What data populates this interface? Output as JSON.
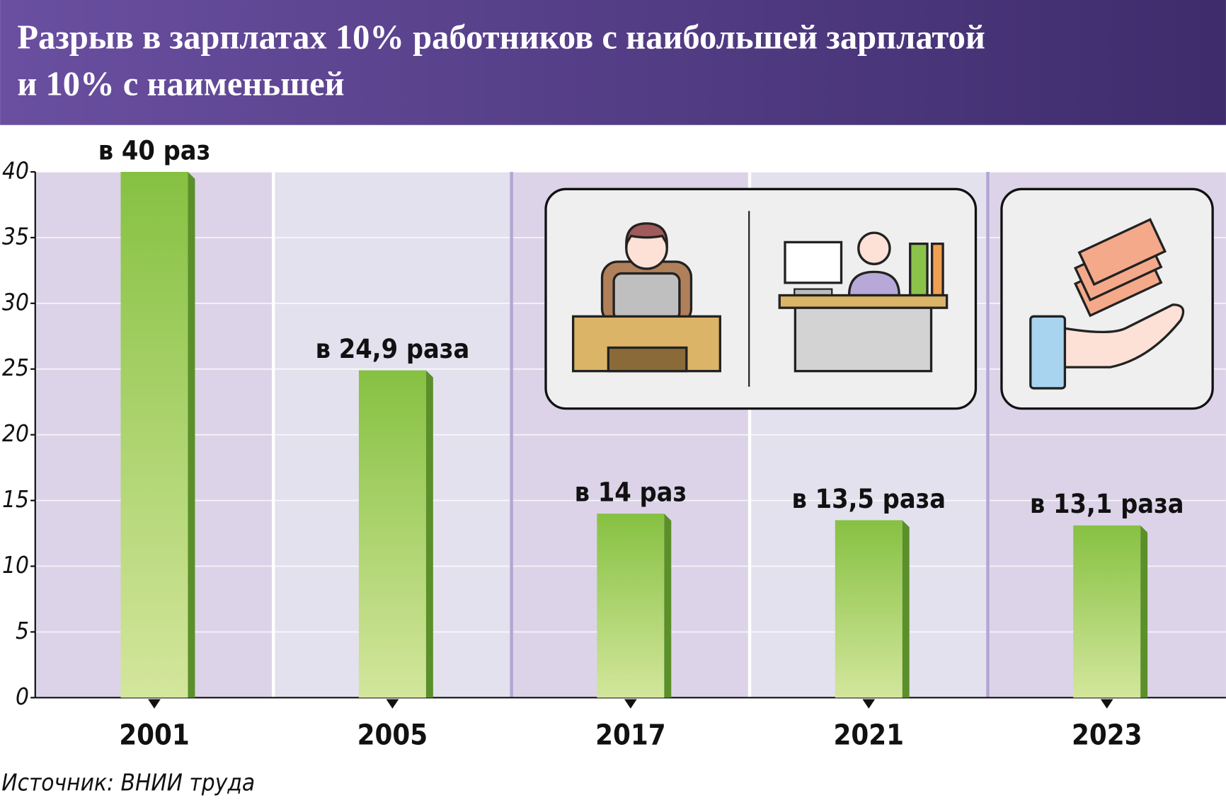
{
  "chart_data": {
    "type": "bar",
    "title": [
      "Разрыв в зарплатах 10% работников с наибольшей зарплатой",
      "и 10% с наименьшей"
    ],
    "categories": [
      "2001",
      "2005",
      "2017",
      "2021",
      "2023"
    ],
    "values": [
      40,
      24.9,
      14,
      13.5,
      13.1
    ],
    "value_labels": [
      "в 40 раз",
      "в 24,9 раза",
      "в 14 раз",
      "в 13,5 раза",
      "в 13,1 раза"
    ],
    "color": "#8bc34a",
    "ylim": [
      0,
      40
    ],
    "yticks": [
      0,
      5,
      10,
      15,
      20,
      25,
      30,
      35,
      40
    ],
    "grid": true,
    "source": "Источник: ВНИИ труда"
  }
}
